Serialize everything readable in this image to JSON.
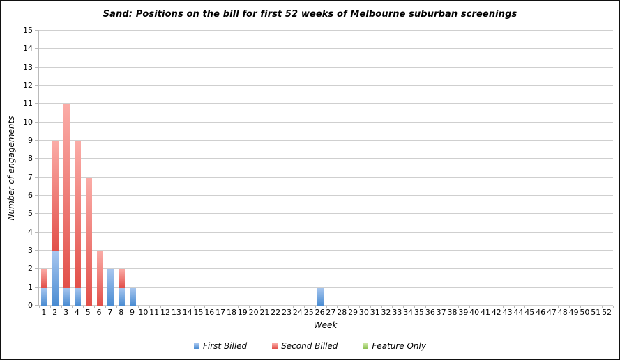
{
  "window": {
    "background": "#ffffff",
    "border_color": "#111111"
  },
  "chart_data": {
    "type": "bar",
    "stacked": true,
    "title": "Sand: Positions on the bill for first 52 weeks of Melbourne suburban screenings",
    "xlabel": "Week",
    "ylabel": "Number of engagements",
    "ylim": [
      0,
      15
    ],
    "ytick_step": 1,
    "grid": true,
    "gridline_color": "#cfcfcf",
    "axis_color": "#b9b9b9",
    "legend_position": "bottom",
    "categories": [
      1,
      2,
      3,
      4,
      5,
      6,
      7,
      8,
      9,
      10,
      11,
      12,
      13,
      14,
      15,
      16,
      17,
      18,
      19,
      20,
      21,
      22,
      23,
      24,
      25,
      26,
      27,
      28,
      29,
      30,
      31,
      32,
      33,
      34,
      35,
      36,
      37,
      38,
      39,
      40,
      41,
      42,
      43,
      44,
      45,
      46,
      47,
      48,
      49,
      50,
      51,
      52
    ],
    "series": [
      {
        "name": "First Billed",
        "color_light": "#a9c7ef",
        "color_dark": "#4a8cd2",
        "values": [
          1,
          3,
          1,
          1,
          0,
          0,
          2,
          1,
          1,
          0,
          0,
          0,
          0,
          0,
          0,
          0,
          0,
          0,
          0,
          0,
          0,
          0,
          0,
          0,
          0,
          1,
          0,
          0,
          0,
          0,
          0,
          0,
          0,
          0,
          0,
          0,
          0,
          0,
          0,
          0,
          0,
          0,
          0,
          0,
          0,
          0,
          0,
          0,
          0,
          0,
          0,
          0
        ]
      },
      {
        "name": "Second Billed",
        "color_light": "#fbaca7",
        "color_dark": "#e2504a",
        "values": [
          1,
          6,
          10,
          8,
          7,
          3,
          0,
          1,
          0,
          0,
          0,
          0,
          0,
          0,
          0,
          0,
          0,
          0,
          0,
          0,
          0,
          0,
          0,
          0,
          0,
          0,
          0,
          0,
          0,
          0,
          0,
          0,
          0,
          0,
          0,
          0,
          0,
          0,
          0,
          0,
          0,
          0,
          0,
          0,
          0,
          0,
          0,
          0,
          0,
          0,
          0,
          0
        ]
      },
      {
        "name": "Feature Only",
        "color_light": "#cde8a5",
        "color_dark": "#8dc152",
        "values": [
          0,
          0,
          0,
          0,
          0,
          0,
          0,
          0,
          0,
          0,
          0,
          0,
          0,
          0,
          0,
          0,
          0,
          0,
          0,
          0,
          0,
          0,
          0,
          0,
          0,
          0,
          0,
          0,
          0,
          0,
          0,
          0,
          0,
          0,
          0,
          0,
          0,
          0,
          0,
          0,
          0,
          0,
          0,
          0,
          0,
          0,
          0,
          0,
          0,
          0,
          0,
          0
        ]
      }
    ]
  }
}
